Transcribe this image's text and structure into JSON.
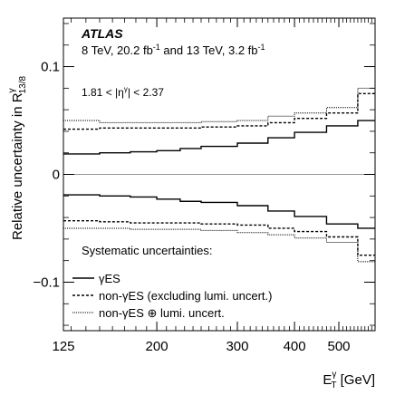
{
  "chart_data": {
    "type": "line",
    "step": true,
    "x_scale": "log",
    "xlim": [
      125,
      600
    ],
    "ylim": [
      -0.145,
      0.145
    ],
    "x_ticks": [
      125,
      200,
      300,
      400,
      500
    ],
    "x_tick_labels": [
      "125",
      "200",
      "300",
      "400",
      "500"
    ],
    "y_ticks": [
      -0.1,
      0,
      0.1
    ],
    "y_tick_labels": [
      "−0.1",
      "0",
      "0.1"
    ],
    "bin_edges": [
      125,
      150,
      175,
      200,
      225,
      250,
      300,
      350,
      400,
      470,
      550,
      600
    ],
    "xlabel_main": "E",
    "xlabel_sub": "T",
    "xlabel_sup": "γ",
    "xlabel_unit": " [GeV]",
    "ylabel_main": "Relative uncertainty in R",
    "ylabel_sub": "13/8",
    "ylabel_sup": "γ",
    "annotations": {
      "experiment": "ATLAS",
      "lumi_prefix": "8 TeV, 20.2 fb",
      "lumi_exp1": "-1",
      "lumi_middle": " and 13 TeV, 3.2 fb",
      "lumi_exp2": "-1",
      "eta_left": "1.81 < |η",
      "eta_sup": "γ",
      "eta_right": "| < 2.37"
    },
    "legend_title": "Systematic uncertainties:",
    "legend_position": "bottom-left",
    "series": [
      {
        "name": "γES",
        "style": "solid",
        "up": [
          0.019,
          0.02,
          0.021,
          0.022,
          0.024,
          0.026,
          0.029,
          0.034,
          0.039,
          0.045,
          0.05
        ],
        "down": [
          -0.019,
          -0.02,
          -0.021,
          -0.023,
          -0.025,
          -0.026,
          -0.029,
          -0.034,
          -0.039,
          -0.046,
          -0.05
        ]
      },
      {
        "name": "non-γES (excluding lumi. uncert.)",
        "style": "dashed",
        "up": [
          0.042,
          0.043,
          0.043,
          0.043,
          0.043,
          0.044,
          0.045,
          0.048,
          0.052,
          0.057,
          0.075
        ],
        "down": [
          -0.043,
          -0.044,
          -0.045,
          -0.045,
          -0.045,
          -0.046,
          -0.047,
          -0.05,
          -0.053,
          -0.058,
          -0.075
        ]
      },
      {
        "name": "non-γES ⊕ lumi. uncert.",
        "style": "dotted",
        "up": [
          0.05,
          0.048,
          0.048,
          0.048,
          0.048,
          0.049,
          0.05,
          0.054,
          0.057,
          0.062,
          0.08
        ],
        "down": [
          -0.05,
          -0.05,
          -0.051,
          -0.051,
          -0.051,
          -0.052,
          -0.054,
          -0.056,
          -0.059,
          -0.063,
          -0.081
        ]
      }
    ]
  }
}
